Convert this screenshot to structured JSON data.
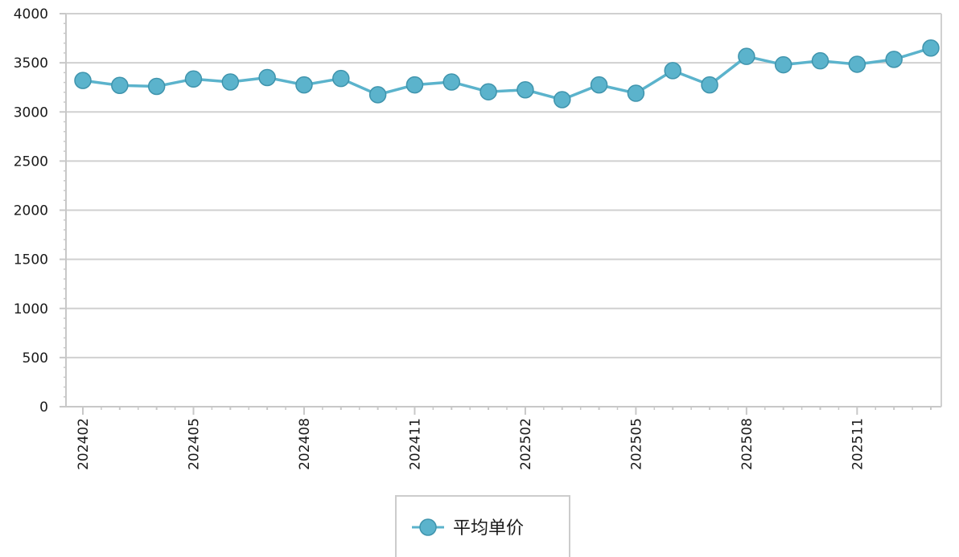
{
  "chart_data": {
    "type": "line",
    "title": "",
    "xlabel": "",
    "ylabel": "",
    "x": [
      "202402",
      "202403",
      "202404",
      "202405",
      "202406",
      "202407",
      "202408",
      "202409",
      "202410",
      "202411",
      "202412",
      "202501",
      "202502",
      "202503",
      "202504",
      "202505",
      "202506",
      "202507",
      "202508",
      "202509",
      "202510",
      "202511",
      "202512",
      "202601"
    ],
    "x_tick_labels": [
      "202402",
      "202405",
      "202408",
      "202411",
      "202502",
      "202505",
      "202508",
      "202511"
    ],
    "ylim": [
      0,
      4000
    ],
    "y_ticks": [
      0,
      500,
      1000,
      1500,
      2000,
      2500,
      3000,
      3500,
      4000
    ],
    "grid": true,
    "legend_position": "bottom-center",
    "series": [
      {
        "name": "平均单价",
        "color": "#5bb3cc",
        "marker_fill": "#5bb3cc",
        "marker_stroke": "#3f94ad",
        "values": [
          3320,
          3270,
          3260,
          3335,
          3305,
          3350,
          3275,
          3340,
          3175,
          3275,
          3305,
          3205,
          3225,
          3125,
          3275,
          3190,
          3420,
          3275,
          3565,
          3480,
          3520,
          3485,
          3535,
          3650
        ]
      }
    ]
  }
}
